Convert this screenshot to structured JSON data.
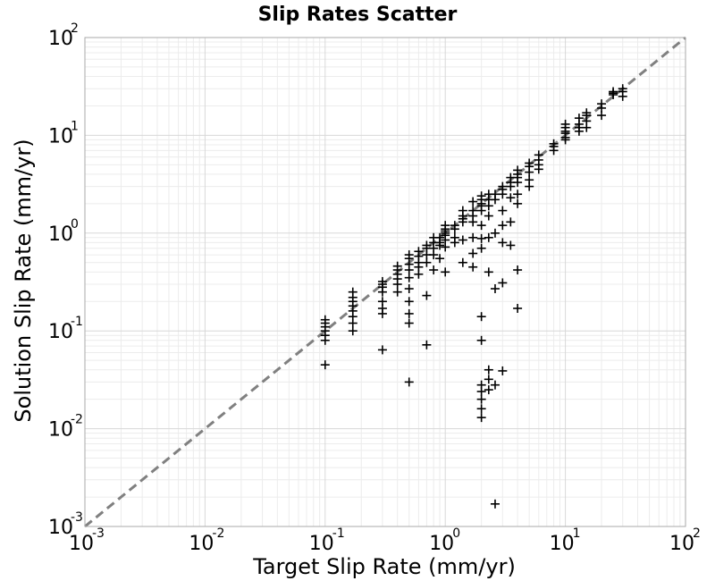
{
  "chart_data": {
    "type": "scatter",
    "title": "Slip Rates Scatter",
    "xlabel": "Target Slip Rate (mm/yr)",
    "ylabel": "Solution Slip Rate (mm/yr)",
    "xscale": "log",
    "yscale": "log",
    "xlim": [
      0.001,
      100
    ],
    "ylim": [
      0.001,
      100
    ],
    "grid": true,
    "marker": "plus",
    "marker_color": "#000000",
    "reference_line": {
      "style": "dashed",
      "color": "#808080",
      "from": [
        0.001,
        0.001
      ],
      "to": [
        100,
        100
      ]
    },
    "x_ticks": [
      {
        "base": "10",
        "exp": "-3"
      },
      {
        "base": "10",
        "exp": "-2"
      },
      {
        "base": "10",
        "exp": "-1"
      },
      {
        "base": "10",
        "exp": "0"
      },
      {
        "base": "10",
        "exp": "1"
      },
      {
        "base": "10",
        "exp": "2"
      }
    ],
    "y_ticks": [
      {
        "base": "10",
        "exp": "-3"
      },
      {
        "base": "10",
        "exp": "-2"
      },
      {
        "base": "10",
        "exp": "-1"
      },
      {
        "base": "10",
        "exp": "0"
      },
      {
        "base": "10",
        "exp": "1"
      },
      {
        "base": "10",
        "exp": "2"
      }
    ],
    "series": [
      {
        "points": [
          [
            0.1,
            0.08
          ],
          [
            0.1,
            0.09
          ],
          [
            0.1,
            0.1
          ],
          [
            0.1,
            0.11
          ],
          [
            0.1,
            0.12
          ],
          [
            0.1,
            0.13
          ],
          [
            0.1,
            0.045
          ],
          [
            0.17,
            0.14
          ],
          [
            0.17,
            0.16
          ],
          [
            0.17,
            0.18
          ],
          [
            0.17,
            0.2
          ],
          [
            0.17,
            0.22
          ],
          [
            0.17,
            0.25
          ],
          [
            0.17,
            0.12
          ],
          [
            0.17,
            0.1
          ],
          [
            0.3,
            0.25
          ],
          [
            0.3,
            0.28
          ],
          [
            0.3,
            0.3
          ],
          [
            0.3,
            0.32
          ],
          [
            0.3,
            0.2
          ],
          [
            0.3,
            0.17
          ],
          [
            0.3,
            0.15
          ],
          [
            0.3,
            0.064
          ],
          [
            0.4,
            0.34
          ],
          [
            0.4,
            0.38
          ],
          [
            0.4,
            0.42
          ],
          [
            0.4,
            0.46
          ],
          [
            0.4,
            0.3
          ],
          [
            0.4,
            0.25
          ],
          [
            0.5,
            0.42
          ],
          [
            0.5,
            0.48
          ],
          [
            0.5,
            0.55
          ],
          [
            0.5,
            0.6
          ],
          [
            0.5,
            0.35
          ],
          [
            0.5,
            0.27
          ],
          [
            0.5,
            0.2
          ],
          [
            0.5,
            0.12
          ],
          [
            0.5,
            0.15
          ],
          [
            0.5,
            0.03
          ],
          [
            0.6,
            0.5
          ],
          [
            0.6,
            0.58
          ],
          [
            0.6,
            0.65
          ],
          [
            0.6,
            0.45
          ],
          [
            0.6,
            0.38
          ],
          [
            0.7,
            0.6
          ],
          [
            0.7,
            0.7
          ],
          [
            0.7,
            0.75
          ],
          [
            0.7,
            0.5
          ],
          [
            0.7,
            0.23
          ],
          [
            0.7,
            0.072
          ],
          [
            0.8,
            0.7
          ],
          [
            0.8,
            0.8
          ],
          [
            0.8,
            0.9
          ],
          [
            0.8,
            0.6
          ],
          [
            0.8,
            0.42
          ],
          [
            0.9,
            0.8
          ],
          [
            0.9,
            0.9
          ],
          [
            0.9,
            0.75
          ],
          [
            0.9,
            0.55
          ],
          [
            1.0,
            0.85
          ],
          [
            1.0,
            0.95
          ],
          [
            1.0,
            1.0
          ],
          [
            1.0,
            1.05
          ],
          [
            1.0,
            1.1
          ],
          [
            1.0,
            1.2
          ],
          [
            1.0,
            0.72
          ],
          [
            1.0,
            0.4
          ],
          [
            1.2,
            1.1
          ],
          [
            1.2,
            1.2
          ],
          [
            1.2,
            0.9
          ],
          [
            1.2,
            0.8
          ],
          [
            1.4,
            1.3
          ],
          [
            1.4,
            1.4
          ],
          [
            1.4,
            1.5
          ],
          [
            1.4,
            1.7
          ],
          [
            1.4,
            0.85
          ],
          [
            1.4,
            0.5
          ],
          [
            1.7,
            1.3
          ],
          [
            1.7,
            1.5
          ],
          [
            1.7,
            1.7
          ],
          [
            1.7,
            2.1
          ],
          [
            1.7,
            0.9
          ],
          [
            1.7,
            0.62
          ],
          [
            1.7,
            0.45
          ],
          [
            2.0,
            1.7
          ],
          [
            2.0,
            1.9
          ],
          [
            2.0,
            2.0
          ],
          [
            2.0,
            2.2
          ],
          [
            2.0,
            2.4
          ],
          [
            2.0,
            1.2
          ],
          [
            2.0,
            0.88
          ],
          [
            2.0,
            0.7
          ],
          [
            2.0,
            0.14
          ],
          [
            2.0,
            0.08
          ],
          [
            2.0,
            0.028
          ],
          [
            2.0,
            0.024
          ],
          [
            2.0,
            0.02
          ],
          [
            2.0,
            0.016
          ],
          [
            2.0,
            0.013
          ],
          [
            2.3,
            1.9
          ],
          [
            2.3,
            2.2
          ],
          [
            2.3,
            2.5
          ],
          [
            2.3,
            1.5
          ],
          [
            2.3,
            0.9
          ],
          [
            2.3,
            0.4
          ],
          [
            2.3,
            0.04
          ],
          [
            2.3,
            0.032
          ],
          [
            2.3,
            0.025
          ],
          [
            2.6,
            2.2
          ],
          [
            2.6,
            2.5
          ],
          [
            2.6,
            1.0
          ],
          [
            2.6,
            0.27
          ],
          [
            2.6,
            0.0017
          ],
          [
            2.6,
            0.028
          ],
          [
            3.0,
            2.5
          ],
          [
            3.0,
            2.8
          ],
          [
            3.0,
            3.0
          ],
          [
            3.0,
            1.7
          ],
          [
            3.0,
            1.2
          ],
          [
            3.0,
            0.8
          ],
          [
            3.0,
            0.31
          ],
          [
            3.0,
            0.039
          ],
          [
            3.5,
            3.0
          ],
          [
            3.5,
            3.3
          ],
          [
            3.5,
            3.7
          ],
          [
            3.5,
            2.3
          ],
          [
            3.5,
            1.3
          ],
          [
            3.5,
            0.75
          ],
          [
            4.0,
            3.3
          ],
          [
            4.0,
            3.7
          ],
          [
            4.0,
            4.0
          ],
          [
            4.0,
            4.4
          ],
          [
            4.0,
            2.5
          ],
          [
            4.0,
            2.0
          ],
          [
            4.0,
            0.42
          ],
          [
            4.0,
            0.17
          ],
          [
            5.0,
            4.2
          ],
          [
            5.0,
            4.8
          ],
          [
            5.0,
            5.2
          ],
          [
            5.0,
            3.5
          ],
          [
            5.0,
            3.0
          ],
          [
            6.0,
            5.0
          ],
          [
            6.0,
            5.6
          ],
          [
            6.0,
            6.3
          ],
          [
            6.0,
            4.5
          ],
          [
            8.0,
            7.0
          ],
          [
            8.0,
            7.7
          ],
          [
            8.0,
            8.2
          ],
          [
            10.0,
            9.5
          ],
          [
            10.0,
            10.5
          ],
          [
            10.0,
            12.0
          ],
          [
            10.0,
            13.0
          ],
          [
            10.0,
            11.0
          ],
          [
            10.0,
            9.0
          ],
          [
            13.0,
            12.0
          ],
          [
            13.0,
            13.0
          ],
          [
            13.0,
            15.0
          ],
          [
            13.0,
            11.0
          ],
          [
            15.0,
            14.0
          ],
          [
            15.0,
            16.0
          ],
          [
            15.0,
            17.0
          ],
          [
            15.0,
            12.0
          ],
          [
            20.0,
            19.0
          ],
          [
            20.0,
            21.0
          ],
          [
            20.0,
            16.0
          ],
          [
            25.0,
            26.0
          ],
          [
            25.0,
            28.0
          ],
          [
            25.0,
            27.0
          ],
          [
            30.0,
            28.0
          ],
          [
            30.0,
            30.0
          ],
          [
            30.0,
            25.0
          ]
        ]
      }
    ]
  }
}
